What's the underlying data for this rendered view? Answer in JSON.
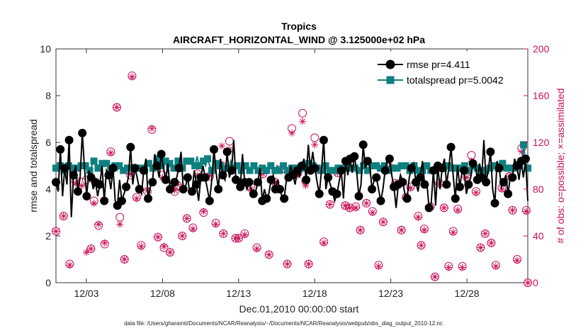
{
  "chart_data": {
    "type": "line",
    "title": "Tropics",
    "subtitle": "AIRCRAFT_HORIZONTAL_WIND @ 3.125000e+02 hPa",
    "xlabel": "Dec.01,2010 00:00:00 start",
    "ylabel_left": "rmse and totalspread",
    "ylabel_right": "# of obs: o=possible; ×=assimilated",
    "x_range": [
      1,
      32
    ],
    "ylim_left": [
      0,
      10
    ],
    "ylim_right": [
      0,
      200
    ],
    "x_ticks": [
      3,
      8,
      13,
      18,
      23,
      28
    ],
    "x_tick_labels": [
      "12/03",
      "12/08",
      "12/13",
      "12/18",
      "12/23",
      "12/28"
    ],
    "y_ticks_left": [
      "0",
      "2",
      "4",
      "6",
      "8",
      "10"
    ],
    "y_ticks_right": [
      "0",
      "40",
      "80",
      "120",
      "160",
      "200"
    ],
    "footer": "data file: /Users/gharamti/Documents/NCAR/Reanalysis/~/Documents/NCAR/Reanalysis/webpub/obs_diag_output_2010-12.nc",
    "colors": {
      "rmse": "#000000",
      "totalspread": "#0f8080",
      "obs": "#c8105a"
    },
    "legend_position": "top-right",
    "series": [
      {
        "name": "rmse pr=4.411",
        "key": "rmse",
        "values": [
          4.3,
          3.9,
          5.7,
          3.7,
          4.9,
          4.2,
          6.1,
          2.8,
          4.6,
          5.0,
          3.9,
          4.5,
          6.4,
          4.9,
          3.7,
          4.8,
          4.5,
          4.0,
          4.3,
          3.7,
          4.2,
          5.0,
          3.5,
          4.8,
          4.6,
          4.0,
          4.9,
          3.5,
          3.3,
          4.4,
          3.5,
          3.8,
          4.1,
          4.5,
          5.8,
          4.2,
          4.9,
          4.5,
          4.0,
          3.8,
          4.8,
          5.3,
          3.6,
          4.1,
          4.3,
          5.5,
          5.0,
          4.5,
          5.5,
          4.9,
          4.4,
          5.1,
          4.0,
          3.9,
          4.3,
          4.5,
          4.9,
          5.6,
          4.0,
          4.1,
          4.5,
          3.8,
          3.9,
          4.8,
          4.2,
          3.5,
          4.5,
          5.0,
          4.5,
          4.0,
          3.5,
          4.4,
          5.7,
          4.7,
          4.0,
          5.3,
          4.6,
          4.4,
          5.6,
          4.5,
          4.8,
          6.1,
          4.4,
          4.5,
          4.1,
          5.5,
          4.3,
          4.0,
          4.3,
          4.0,
          3.8,
          3.9,
          4.3,
          4.9,
          3.5,
          4.0,
          3.6,
          3.8,
          4.4,
          4.6,
          4.0,
          4.4,
          4.0,
          3.7,
          3.6,
          4.4,
          4.5,
          5.0,
          4.6,
          4.2,
          4.8,
          4.5,
          5.0,
          5.3,
          4.4,
          5.9,
          4.8,
          5.6,
          4.9,
          4.3,
          3.8,
          4.8,
          6.1,
          4.0,
          4.5,
          4.2,
          3.9,
          3.5,
          3.8,
          4.3,
          4.8,
          3.6,
          5.2,
          4.6,
          5.3,
          4.7,
          5.4,
          4.8,
          3.7,
          4.2,
          5.9,
          4.9,
          5.2,
          5.0,
          4.0,
          4.4,
          4.5,
          4.0,
          3.5,
          4.0,
          4.8,
          5.3,
          5.3,
          4.6,
          4.1,
          3.2,
          4.2,
          4.6,
          4.3,
          3.8,
          3.6,
          4.5,
          4.9,
          5.1,
          4.3,
          3.9,
          4.5,
          5.2,
          4.2,
          4.3,
          3.2,
          3.4,
          4.8,
          3.3,
          5.0,
          4.0,
          4.9,
          5.3,
          4.2,
          4.9,
          5.8,
          4.6,
          3.6,
          5.0,
          4.1,
          4.7,
          4.8,
          3.8,
          4.2,
          4.5,
          5.1,
          5.1,
          4.4,
          5.1,
          4.5,
          6.1,
          4.3,
          4.8,
          5.6,
          4.0,
          3.4,
          5.2,
          4.9,
          4.1,
          4.3,
          4.6,
          3.8,
          4.5,
          4.5,
          5.3,
          5.0,
          4.4,
          5.2,
          4.5,
          5.3,
          3.5
        ]
      },
      {
        "name": "totalspread pr=5.0042",
        "key": "totalspread",
        "values": [
          4.9,
          4.9,
          5.0,
          4.9,
          4.8,
          4.9,
          5.0,
          5.0,
          4.9,
          4.8,
          4.9,
          5.1,
          5.0,
          4.9,
          5.0,
          4.9,
          4.8,
          5.0,
          5.2,
          5.1,
          4.9,
          5.0,
          5.1,
          5.0,
          5.1,
          4.9,
          4.8,
          4.9,
          5.0,
          4.8,
          5.0,
          4.9,
          4.8,
          5.0,
          4.9,
          5.0,
          4.9,
          4.8,
          4.9,
          4.8,
          4.9,
          5.0,
          4.8,
          4.9,
          5.1,
          5.0,
          4.9,
          4.8,
          5.3,
          4.9,
          5.0,
          5.4,
          5.2,
          4.8,
          5.1,
          5.0,
          4.9,
          5.1,
          5.2,
          5.0,
          4.9,
          5.0,
          5.2,
          5.3,
          5.2,
          4.9,
          5.0,
          5.4,
          5.0,
          5.1,
          5.2,
          5.0,
          5.3,
          5.0,
          4.8,
          4.9,
          5.1,
          4.9,
          5.0,
          4.8,
          4.9,
          4.8,
          4.9,
          5.2,
          4.9,
          5.0,
          5.0,
          4.9,
          4.8,
          4.9,
          5.0,
          5.1,
          4.8,
          4.9,
          5.0,
          4.9,
          4.8,
          5.0,
          4.9,
          5.0,
          4.8,
          4.9,
          5.0,
          4.9,
          4.8,
          5.0,
          4.8,
          4.9,
          5.0,
          4.9,
          4.8,
          5.0,
          4.9,
          4.8,
          4.9,
          5.0,
          4.9,
          4.8,
          4.9,
          5.0,
          5.1,
          4.9,
          5.0,
          4.9,
          4.9,
          4.9,
          4.8,
          4.9,
          5.0,
          4.9,
          4.8,
          4.9,
          4.8,
          5.0,
          4.9,
          5.0,
          4.9,
          4.8,
          4.9,
          5.0,
          4.9,
          5.0,
          4.9,
          5.0,
          4.8,
          4.9,
          5.0,
          5.1,
          4.8,
          4.9,
          5.0,
          4.9,
          5.0,
          4.8,
          4.9,
          4.8,
          5.0,
          4.9,
          4.8,
          5.0,
          4.9,
          4.8,
          4.9,
          4.8,
          5.0,
          4.9,
          5.0,
          4.9,
          4.8,
          4.9,
          5.0,
          4.9,
          4.8,
          4.9,
          4.8,
          4.9,
          5.0,
          4.9,
          4.8,
          4.9,
          4.8,
          5.0,
          4.9,
          4.8,
          4.9,
          4.8,
          5.0,
          4.8,
          4.9,
          4.8,
          4.9,
          4.8,
          4.9,
          5.1,
          5.0,
          4.9,
          4.8,
          4.9,
          5.0,
          4.8,
          4.9,
          5.0,
          4.8,
          4.9,
          4.8,
          5.0,
          4.9,
          5.1,
          5.0,
          4.9,
          4.9,
          5.0,
          5.1,
          5.0,
          4.9,
          5.0,
          4.9,
          4.8,
          4.9,
          5.0,
          5.0,
          4.9,
          5.9,
          5.1,
          4.9
        ]
      }
    ],
    "obs_possible": [
      [
        1.0,
        44
      ],
      [
        1.5,
        57
      ],
      [
        1.9,
        16
      ],
      [
        2.3,
        87
      ],
      [
        2.7,
        86
      ],
      [
        3.0,
        88
      ],
      [
        3.3,
        29
      ],
      [
        3.5,
        70
      ],
      [
        3.8,
        49
      ],
      [
        4.2,
        33
      ],
      [
        4.6,
        112
      ],
      [
        5.0,
        150
      ],
      [
        5.2,
        56
      ],
      [
        5.5,
        20
      ],
      [
        5.9,
        92
      ],
      [
        6.0,
        177
      ],
      [
        6.3,
        73
      ],
      [
        6.6,
        32
      ],
      [
        7.0,
        78
      ],
      [
        7.3,
        131
      ],
      [
        7.7,
        39
      ],
      [
        8.0,
        92
      ],
      [
        8.1,
        30
      ],
      [
        8.5,
        26
      ],
      [
        8.8,
        78
      ],
      [
        9.0,
        83
      ],
      [
        9.3,
        40
      ],
      [
        9.6,
        55
      ],
      [
        10.0,
        47
      ],
      [
        10.3,
        93
      ],
      [
        10.7,
        60
      ],
      [
        11.1,
        91
      ],
      [
        11.5,
        51
      ],
      [
        11.9,
        100
      ],
      [
        12.0,
        42
      ],
      [
        12.4,
        121
      ],
      [
        12.8,
        38
      ],
      [
        13.0,
        38
      ],
      [
        13.4,
        42
      ],
      [
        13.8,
        82
      ],
      [
        14.2,
        30
      ],
      [
        14.6,
        93
      ],
      [
        15.0,
        24
      ],
      [
        15.4,
        86
      ],
      [
        15.8,
        97
      ],
      [
        16.2,
        16
      ],
      [
        16.5,
        132
      ],
      [
        16.9,
        94
      ],
      [
        17.2,
        145
      ],
      [
        17.4,
        87
      ],
      [
        17.6,
        16
      ],
      [
        18.0,
        124
      ],
      [
        18.2,
        97
      ],
      [
        18.6,
        35
      ],
      [
        19.0,
        67
      ],
      [
        19.5,
        94
      ],
      [
        20.0,
        66
      ],
      [
        20.3,
        64
      ],
      [
        20.7,
        65
      ],
      [
        21.0,
        45
      ],
      [
        21.4,
        68
      ],
      [
        21.8,
        61
      ],
      [
        22.2,
        15
      ],
      [
        22.5,
        52
      ],
      [
        22.9,
        99
      ],
      [
        23.3,
        85
      ],
      [
        23.7,
        45
      ],
      [
        24.0,
        73
      ],
      [
        24.3,
        82
      ],
      [
        24.8,
        57
      ],
      [
        25.0,
        32
      ],
      [
        25.2,
        46
      ],
      [
        25.6,
        65
      ],
      [
        25.9,
        5
      ],
      [
        26.2,
        85
      ],
      [
        26.5,
        64
      ],
      [
        26.8,
        14
      ],
      [
        27.1,
        44
      ],
      [
        27.4,
        63
      ],
      [
        27.7,
        14
      ],
      [
        28.0,
        90
      ],
      [
        28.3,
        109
      ],
      [
        28.6,
        78
      ],
      [
        28.9,
        30
      ],
      [
        29.2,
        42
      ],
      [
        29.6,
        34
      ],
      [
        29.9,
        15
      ],
      [
        30.3,
        81
      ],
      [
        30.8,
        91
      ],
      [
        31.0,
        62
      ],
      [
        31.3,
        20
      ],
      [
        31.6,
        115
      ],
      [
        31.9,
        62
      ],
      [
        32.0,
        0
      ]
    ],
    "obs_assimilated": [
      [
        1.0,
        44
      ],
      [
        1.5,
        57
      ],
      [
        1.9,
        15
      ],
      [
        2.3,
        85
      ],
      [
        2.7,
        83
      ],
      [
        3.0,
        26
      ],
      [
        3.3,
        29
      ],
      [
        3.5,
        68
      ],
      [
        3.8,
        50
      ],
      [
        4.2,
        34
      ],
      [
        4.6,
        111
      ],
      [
        5.0,
        150
      ],
      [
        5.2,
        50
      ],
      [
        5.5,
        20
      ],
      [
        5.9,
        93
      ],
      [
        6.0,
        176
      ],
      [
        6.3,
        72
      ],
      [
        6.6,
        31
      ],
      [
        7.0,
        79
      ],
      [
        7.3,
        132
      ],
      [
        7.7,
        39
      ],
      [
        8.0,
        90
      ],
      [
        8.1,
        31
      ],
      [
        8.5,
        26
      ],
      [
        8.8,
        79
      ],
      [
        9.0,
        84
      ],
      [
        9.3,
        40
      ],
      [
        9.6,
        55
      ],
      [
        10.0,
        46
      ],
      [
        10.3,
        92
      ],
      [
        10.7,
        61
      ],
      [
        11.1,
        92
      ],
      [
        11.5,
        50
      ],
      [
        11.9,
        117
      ],
      [
        12.0,
        42
      ],
      [
        12.4,
        114
      ],
      [
        12.8,
        38
      ],
      [
        13.0,
        38
      ],
      [
        13.4,
        41
      ],
      [
        13.8,
        80
      ],
      [
        14.2,
        29
      ],
      [
        14.6,
        93
      ],
      [
        15.0,
        24
      ],
      [
        15.4,
        86
      ],
      [
        15.8,
        97
      ],
      [
        16.2,
        16
      ],
      [
        16.5,
        128
      ],
      [
        16.9,
        92
      ],
      [
        17.2,
        138
      ],
      [
        17.4,
        83
      ],
      [
        17.6,
        16
      ],
      [
        18.0,
        118
      ],
      [
        18.2,
        96
      ],
      [
        18.6,
        34
      ],
      [
        19.0,
        67
      ],
      [
        19.5,
        94
      ],
      [
        20.0,
        66
      ],
      [
        20.3,
        64
      ],
      [
        20.7,
        64
      ],
      [
        21.0,
        45
      ],
      [
        21.4,
        68
      ],
      [
        21.8,
        60
      ],
      [
        22.2,
        14
      ],
      [
        22.5,
        52
      ],
      [
        22.9,
        99
      ],
      [
        23.3,
        85
      ],
      [
        23.7,
        45
      ],
      [
        24.0,
        73
      ],
      [
        24.3,
        81
      ],
      [
        24.8,
        56
      ],
      [
        25.0,
        32
      ],
      [
        25.2,
        45
      ],
      [
        25.6,
        65
      ],
      [
        25.9,
        5
      ],
      [
        26.2,
        84
      ],
      [
        26.5,
        64
      ],
      [
        26.8,
        13
      ],
      [
        27.1,
        43
      ],
      [
        27.4,
        62
      ],
      [
        27.7,
        13
      ],
      [
        28.0,
        90
      ],
      [
        28.3,
        104
      ],
      [
        28.6,
        77
      ],
      [
        28.9,
        30
      ],
      [
        29.2,
        42
      ],
      [
        29.6,
        34
      ],
      [
        29.9,
        14
      ],
      [
        30.3,
        80
      ],
      [
        30.8,
        91
      ],
      [
        31.0,
        62
      ],
      [
        31.3,
        19
      ],
      [
        31.6,
        112
      ],
      [
        31.9,
        61
      ],
      [
        32.0,
        0
      ]
    ]
  }
}
